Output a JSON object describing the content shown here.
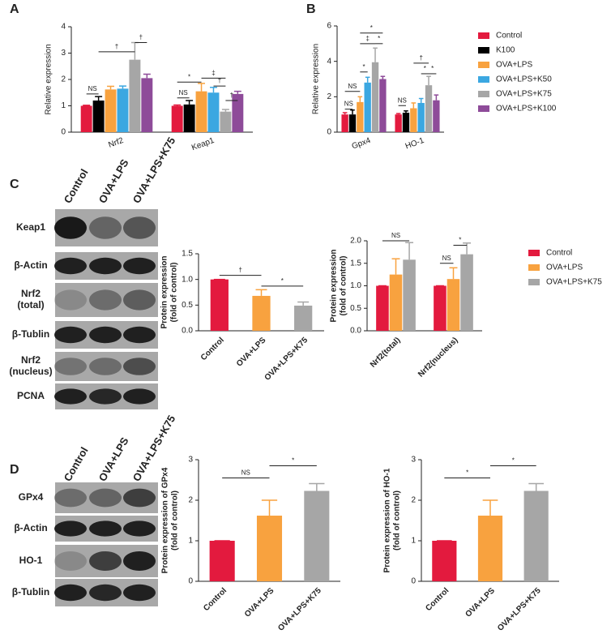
{
  "panels": [
    "A",
    "B",
    "C",
    "D"
  ],
  "blots": [
    {
      "columns": [
        "Control",
        "OVA+LPS",
        "OVA+LPS+K75"
      ],
      "rows": [
        [
          "Keap1"
        ],
        [
          "β-Actin"
        ],
        [
          "Nrf2",
          "(total)"
        ],
        [
          "β-Tublin"
        ],
        [
          "Nrf2",
          "(nucleus)"
        ],
        [
          "PCNA"
        ]
      ]
    },
    {
      "columns": [
        "Control",
        "OVA+LPS",
        "OVA+LPS+K75"
      ],
      "rows": [
        [
          "GPx4"
        ],
        [
          "β-Actin"
        ],
        [
          "HO-1"
        ],
        [
          "β-Tublin"
        ]
      ]
    }
  ],
  "chart_data": [
    {
      "type": "bar",
      "ylabel": "Relative expression",
      "categories": [
        "Nrf2",
        "Keap1"
      ],
      "series": [
        {
          "name": "Control",
          "color": "#e31a3e",
          "values": [
            1,
            1
          ],
          "errors": [
            0.02,
            0.03
          ]
        },
        {
          "name": "K100",
          "color": "#000000",
          "values": [
            1.2,
            1.05
          ],
          "errors": [
            0.15,
            0.15
          ]
        },
        {
          "name": "OVA+LPS",
          "color": "#f8a23f",
          "values": [
            1.62,
            1.55
          ],
          "errors": [
            0.12,
            0.3
          ]
        },
        {
          "name": "OVA+LPS+K50",
          "color": "#3ba7e1",
          "values": [
            1.65,
            1.5
          ],
          "errors": [
            0.1,
            0.2
          ]
        },
        {
          "name": "OVA+LPS+K75",
          "color": "#a6a6a6",
          "values": [
            2.75,
            0.78
          ],
          "errors": [
            0.65,
            0.08
          ]
        },
        {
          "name": "OVA+LPS+K100",
          "color": "#8e4b99",
          "values": [
            2.05,
            1.45
          ],
          "errors": [
            0.15,
            0.1
          ]
        }
      ],
      "ylim": [
        0,
        4
      ],
      "yticks": [
        0,
        1,
        2,
        3,
        4
      ],
      "annotations": [
        {
          "text": "NS",
          "category": 0,
          "from": 0,
          "to": 1,
          "y": 1.45
        },
        {
          "text": "†",
          "category": 0,
          "from": 1,
          "to": 4,
          "y": 3.05
        },
        {
          "text": "†",
          "category": 0,
          "from": 4,
          "to": 5,
          "y": 3.4
        },
        {
          "text": "*",
          "category": 1,
          "from": 0,
          "to": 2,
          "y": 1.9
        },
        {
          "text": "NS",
          "category": 1,
          "from": 0,
          "to": 1,
          "y": 1.3
        },
        {
          "text": "‡",
          "category": 1,
          "from": 2,
          "to": 4,
          "y": 2.05
        },
        {
          "text": "†",
          "category": 1,
          "from": 3,
          "to": 4,
          "y": 1.75
        },
        {
          "text": "†",
          "category": 1,
          "from": 4,
          "to": 5,
          "y": 1.2
        }
      ]
    },
    {
      "type": "bar",
      "ylabel": "Relative expression",
      "categories": [
        "Gpx4",
        "HO-1"
      ],
      "series": [
        {
          "name": "Control",
          "color": "#e31a3e",
          "values": [
            1,
            1
          ],
          "errors": [
            0.1,
            0.05
          ]
        },
        {
          "name": "K100",
          "color": "#000000",
          "values": [
            1.0,
            1.1
          ],
          "errors": [
            0.25,
            0.1
          ]
        },
        {
          "name": "OVA+LPS",
          "color": "#f8a23f",
          "values": [
            1.7,
            1.35
          ],
          "errors": [
            0.3,
            0.3
          ]
        },
        {
          "name": "OVA+LPS+K50",
          "color": "#3ba7e1",
          "values": [
            2.8,
            1.65
          ],
          "errors": [
            0.3,
            0.25
          ]
        },
        {
          "name": "OVA+LPS+K75",
          "color": "#a6a6a6",
          "values": [
            3.95,
            2.65
          ],
          "errors": [
            0.8,
            0.5
          ]
        },
        {
          "name": "OVA+LPS+K100",
          "color": "#8e4b99",
          "values": [
            3.0,
            1.8
          ],
          "errors": [
            0.15,
            0.3
          ]
        }
      ],
      "ylim": [
        0,
        6
      ],
      "yticks": [
        0,
        2,
        4,
        6
      ],
      "legend": "right",
      "annotations": [
        {
          "text": "NS",
          "category": 0,
          "from": 0,
          "to": 1,
          "y": 1.3
        },
        {
          "text": "NS",
          "category": 0,
          "from": 0,
          "to": 2,
          "y": 2.3
        },
        {
          "text": "*",
          "category": 0,
          "from": 2,
          "to": 3,
          "y": 3.4
        },
        {
          "text": "‡",
          "category": 0,
          "from": 2,
          "to": 4,
          "y": 5.0
        },
        {
          "text": "*",
          "category": 0,
          "from": 4,
          "to": 5,
          "y": 5.0
        },
        {
          "text": "*",
          "category": 0,
          "from": 2,
          "to": 5,
          "y": 5.6
        },
        {
          "text": "NS",
          "category": 1,
          "from": 0,
          "to": 1,
          "y": 1.5
        },
        {
          "text": "†",
          "category": 1,
          "from": 2,
          "to": 4,
          "y": 3.9
        },
        {
          "text": "*",
          "category": 1,
          "from": 3,
          "to": 4,
          "y": 3.3
        },
        {
          "text": "*",
          "category": 1,
          "from": 4,
          "to": 5,
          "y": 3.3
        }
      ]
    },
    {
      "type": "bar",
      "ylabel": [
        "Protein expression",
        "(fold of control)"
      ],
      "categories": [
        "Control",
        "OVA+LPS",
        "OVA+LPS+K75"
      ],
      "values": [
        1,
        0.68,
        0.49
      ],
      "errors": [
        0,
        0.12,
        0.07
      ],
      "colors": [
        "#e31a3e",
        "#f8a23f",
        "#a6a6a6"
      ],
      "ylim": [
        0,
        1.5
      ],
      "yticks": [
        {
          "value": 0,
          "label": "0.0"
        },
        {
          "value": 0.5,
          "label": "0.5"
        },
        {
          "value": 1,
          "label": "1.0"
        },
        {
          "value": 1.5,
          "label": "1.5"
        }
      ],
      "annotations": [
        {
          "text": "†",
          "from": 0,
          "to": 1,
          "y": 1.08
        },
        {
          "text": "*",
          "from": 1,
          "to": 2,
          "y": 0.87
        }
      ]
    },
    {
      "type": "bar",
      "ylabel": [
        "Protein expression",
        "(fold of control)"
      ],
      "categories": [
        "Nrf2(total)",
        "Nrf2(nucleus)"
      ],
      "series": [
        {
          "name": "Control",
          "color": "#e31a3e",
          "values": [
            1,
            1
          ],
          "errors": [
            0,
            0
          ]
        },
        {
          "name": "OVA+LPS",
          "color": "#f8a23f",
          "values": [
            1.25,
            1.15
          ],
          "errors": [
            0.35,
            0.25
          ]
        },
        {
          "name": "OVA+LPS+K75",
          "color": "#a6a6a6",
          "values": [
            1.58,
            1.7
          ],
          "errors": [
            0.38,
            0.25
          ]
        }
      ],
      "ylim": [
        0,
        2
      ],
      "yticks": [
        {
          "value": 0,
          "label": "0.0"
        },
        {
          "value": 0.5,
          "label": "0.5"
        },
        {
          "value": 1,
          "label": "1.0"
        },
        {
          "value": 1.5,
          "label": "1.5"
        },
        {
          "value": 2,
          "label": "2.0"
        }
      ],
      "legend": "right",
      "annotations": [
        {
          "text": "NS",
          "category": 0,
          "from": 0,
          "to": 2,
          "y": 2.0
        },
        {
          "text": "NS",
          "category": 1,
          "from": 0,
          "to": 1,
          "y": 1.5
        },
        {
          "text": "*",
          "category": 1,
          "from": 1,
          "to": 2,
          "y": 1.9
        }
      ]
    },
    {
      "type": "bar",
      "ylabel": [
        "Protein expression of GPx4",
        "(fold of control)"
      ],
      "categories": [
        "Control",
        "OVA+LPS",
        "OVA+LPS+K75"
      ],
      "values": [
        1,
        1.62,
        2.23
      ],
      "errors": [
        0,
        0.38,
        0.18
      ],
      "colors": [
        "#e31a3e",
        "#f8a23f",
        "#a6a6a6"
      ],
      "ylim": [
        0,
        3
      ],
      "yticks": [
        0,
        1,
        2,
        3
      ],
      "annotations": [
        {
          "text": "NS",
          "from": 0,
          "to": 1,
          "y": 2.55
        },
        {
          "text": "*",
          "from": 1,
          "to": 2,
          "y": 2.85
        }
      ]
    },
    {
      "type": "bar",
      "ylabel": [
        "Protein expression of HO-1",
        "(fold of control)"
      ],
      "categories": [
        "Control",
        "OVA+LPS",
        "OVA+LPS+K75"
      ],
      "values": [
        1,
        1.62,
        2.23
      ],
      "errors": [
        0,
        0.38,
        0.18
      ],
      "colors": [
        "#e31a3e",
        "#f8a23f",
        "#a6a6a6"
      ],
      "ylim": [
        0,
        3
      ],
      "yticks": [
        0,
        1,
        2,
        3
      ],
      "annotations": [
        {
          "text": "*",
          "from": 0,
          "to": 1,
          "y": 2.55
        },
        {
          "text": "*",
          "from": 1,
          "to": 2,
          "y": 2.85
        }
      ]
    }
  ]
}
